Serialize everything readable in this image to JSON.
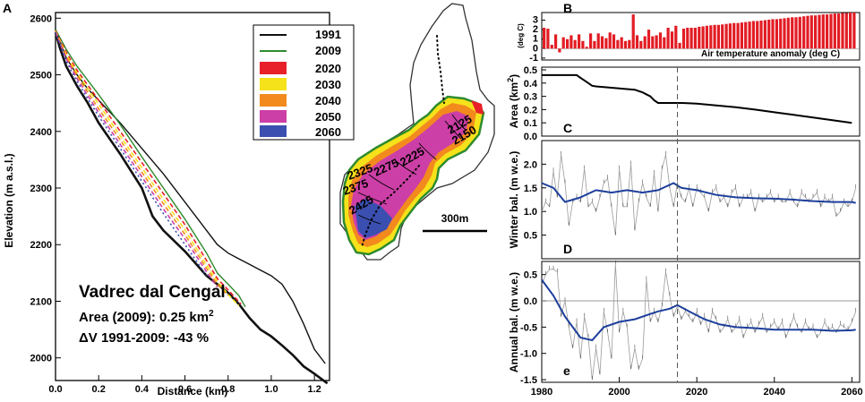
{
  "colors": {
    "c1991": "#111111",
    "c2009": "#2e8b2e",
    "c2020": "#e8202a",
    "c2030": "#f5e21a",
    "c2040": "#f28a1e",
    "c2050": "#cc3fa6",
    "c2060": "#3b4fb0",
    "model": "#1d3f9c",
    "markers": "#707070",
    "bars": "#e21c24"
  },
  "chart_data": [
    {
      "id": "A",
      "type": "line",
      "panel_label": "A",
      "xlabel": "Distance (km)",
      "ylabel": "Elevation (m a.s.l.)",
      "xlim": [
        0,
        1.27
      ],
      "ylim": [
        1960,
        2610
      ],
      "xticks": [
        "0.0",
        "0.2",
        "0.4",
        "0.6",
        "0.8",
        "1.0",
        "1.2"
      ],
      "yticks": [
        "2000",
        "2100",
        "2200",
        "2300",
        "2400",
        "2500",
        "2600"
      ],
      "title": "Vadrec dal Cengal",
      "annotation_area": "Area (2009): 0.25 km",
      "annotation_area_sup": "2",
      "annotation_dv": "ΔV 1991-2009: -43 %",
      "legend": [
        {
          "label": "1991",
          "kind": "line"
        },
        {
          "label": "2009",
          "kind": "line"
        },
        {
          "label": "2020",
          "kind": "box"
        },
        {
          "label": "2030",
          "kind": "box"
        },
        {
          "label": "2040",
          "kind": "box"
        },
        {
          "label": "2050",
          "kind": "box"
        },
        {
          "label": "2060",
          "kind": "box"
        }
      ],
      "series": [
        {
          "name": "1991 surface",
          "x": [
            0.0,
            0.02,
            0.05,
            0.1,
            0.15,
            0.2,
            0.3,
            0.4,
            0.5,
            0.6,
            0.7,
            0.75,
            0.8,
            0.85,
            0.9,
            0.95,
            1.0,
            1.05,
            1.1,
            1.15,
            1.2,
            1.25
          ],
          "y": [
            2580,
            2560,
            2530,
            2500,
            2475,
            2455,
            2415,
            2370,
            2325,
            2275,
            2225,
            2200,
            2185,
            2175,
            2165,
            2155,
            2145,
            2130,
            2100,
            2060,
            2015,
            1990
          ]
        },
        {
          "name": "bed",
          "x": [
            0.0,
            0.02,
            0.05,
            0.1,
            0.15,
            0.2,
            0.3,
            0.4,
            0.45,
            0.5,
            0.6,
            0.7,
            0.75,
            0.8,
            0.85,
            0.9,
            0.95,
            1.0,
            1.05,
            1.1,
            1.15,
            1.2,
            1.26
          ],
          "y": [
            2575,
            2548,
            2515,
            2480,
            2450,
            2415,
            2360,
            2300,
            2250,
            2225,
            2188,
            2145,
            2130,
            2115,
            2095,
            2070,
            2050,
            2038,
            2022,
            2005,
            1985,
            1972,
            1955
          ]
        },
        {
          "name": "2009 surface",
          "x": [
            0.0,
            0.05,
            0.1,
            0.2,
            0.3,
            0.4,
            0.5,
            0.6,
            0.7,
            0.75,
            0.8,
            0.85,
            0.88
          ],
          "y": [
            2580,
            2545,
            2515,
            2465,
            2412,
            2355,
            2300,
            2245,
            2185,
            2150,
            2130,
            2110,
            2090
          ]
        },
        {
          "name": "2020",
          "x": [
            0.0,
            0.05,
            0.1,
            0.2,
            0.3,
            0.4,
            0.5,
            0.6,
            0.7,
            0.75,
            0.8,
            0.86
          ],
          "y": [
            2578,
            2540,
            2508,
            2455,
            2400,
            2345,
            2290,
            2235,
            2172,
            2140,
            2120,
            2095
          ]
        },
        {
          "name": "2030",
          "x": [
            0.0,
            0.05,
            0.1,
            0.2,
            0.3,
            0.4,
            0.5,
            0.6,
            0.7,
            0.75,
            0.8,
            0.85
          ],
          "y": [
            2577,
            2536,
            2503,
            2448,
            2392,
            2336,
            2280,
            2226,
            2164,
            2135,
            2112,
            2092
          ]
        },
        {
          "name": "2040",
          "x": [
            0.0,
            0.05,
            0.1,
            0.2,
            0.3,
            0.4,
            0.5,
            0.6,
            0.7,
            0.75,
            0.8
          ],
          "y": [
            2576,
            2532,
            2498,
            2440,
            2385,
            2328,
            2272,
            2218,
            2158,
            2130,
            2110
          ]
        },
        {
          "name": "2050",
          "x": [
            0.0,
            0.05,
            0.1,
            0.2,
            0.3,
            0.4,
            0.5,
            0.6,
            0.7,
            0.75
          ],
          "y": [
            2575,
            2528,
            2493,
            2433,
            2377,
            2320,
            2263,
            2210,
            2152,
            2125
          ]
        },
        {
          "name": "2060",
          "x": [
            0.0,
            0.05,
            0.1,
            0.2,
            0.3,
            0.4,
            0.5,
            0.6,
            0.7
          ],
          "y": [
            2575,
            2524,
            2488,
            2427,
            2370,
            2312,
            2255,
            2200,
            2145
          ]
        }
      ]
    },
    {
      "id": "map",
      "type": "map",
      "contours": [
        "2125",
        "2150",
        "2225",
        "2275",
        "2325",
        "2375",
        "2425"
      ],
      "scale_label": "300m"
    },
    {
      "id": "B",
      "type": "bar",
      "panel_label": "B",
      "xlim": [
        1980,
        2062
      ],
      "ylim": [
        -1.2,
        3.8
      ],
      "yticks": [
        "3",
        "2",
        "1",
        "0",
        "-1"
      ],
      "ylabel": "(deg C)",
      "inner_label": "Air temperature anomaly (deg C)",
      "years": [
        1980,
        1981,
        1982,
        1983,
        1984,
        1985,
        1986,
        1987,
        1988,
        1989,
        1990,
        1991,
        1992,
        1993,
        1994,
        1995,
        1996,
        1997,
        1998,
        1999,
        2000,
        2001,
        2002,
        2003,
        2004,
        2005,
        2006,
        2007,
        2008,
        2009,
        2010,
        2011,
        2012,
        2013,
        2014,
        2015,
        2016,
        2017,
        2018,
        2019,
        2020,
        2021,
        2022,
        2023,
        2024,
        2025,
        2026,
        2027,
        2028,
        2029,
        2030,
        2031,
        2032,
        2033,
        2034,
        2035,
        2036,
        2037,
        2038,
        2039,
        2040,
        2041,
        2042,
        2043,
        2044,
        2045,
        2046,
        2047,
        2048,
        2049,
        2050,
        2051,
        2052,
        2053,
        2054,
        2055,
        2056,
        2057,
        2058,
        2059,
        2060
      ],
      "values": [
        2.2,
        2.1,
        0.4,
        1.5,
        -0.4,
        1.2,
        1.0,
        1.4,
        0.9,
        1.5,
        0.8,
        0.2,
        1.6,
        0.8,
        1.6,
        1.3,
        1.1,
        1.7,
        1.5,
        0.9,
        1.2,
        0.8,
        0.9,
        3.6,
        1.4,
        0.8,
        1.3,
        2.0,
        1.3,
        1.4,
        1.7,
        1.2,
        2.2,
        1.8,
        2.4,
        0.6,
        2.1,
        2.2,
        2.2,
        2.2,
        2.3,
        2.35,
        2.4,
        2.45,
        2.5,
        2.5,
        2.55,
        2.6,
        2.65,
        2.7,
        2.7,
        2.75,
        2.8,
        2.85,
        2.9,
        2.9,
        2.95,
        3.0,
        3.05,
        3.1,
        3.1,
        3.15,
        3.2,
        3.25,
        3.3,
        3.3,
        3.35,
        3.4,
        3.45,
        3.5,
        3.5,
        3.55,
        3.6,
        3.6,
        3.65,
        3.7,
        3.7,
        3.75,
        3.75,
        3.8,
        3.8
      ]
    },
    {
      "id": "C",
      "type": "line",
      "panel_label": "C",
      "ylabel": "Area (km",
      "ylabel_sup": "2",
      "ylabel_end": ")",
      "xlim": [
        1980,
        2062
      ],
      "ylim": [
        0,
        0.5
      ],
      "yticks": [
        "0.5",
        "0.4",
        "0.3",
        "0.2",
        "0.1",
        "0.0"
      ],
      "x": [
        1980,
        1989,
        1990,
        1991,
        1992,
        1993,
        1994,
        1996,
        1998,
        2000,
        2002,
        2004,
        2006,
        2008,
        2009,
        2010,
        2012,
        2014,
        2016,
        2020,
        2025,
        2030,
        2035,
        2040,
        2045,
        2050,
        2055,
        2060
      ],
      "y": [
        0.46,
        0.46,
        0.44,
        0.42,
        0.4,
        0.38,
        0.375,
        0.37,
        0.365,
        0.36,
        0.355,
        0.35,
        0.33,
        0.3,
        0.27,
        0.25,
        0.25,
        0.25,
        0.25,
        0.245,
        0.232,
        0.218,
        0.2,
        0.18,
        0.16,
        0.14,
        0.12,
        0.1
      ]
    },
    {
      "id": "D",
      "type": "line",
      "panel_label": "D",
      "ylabel": "Winter bal. (m w.e.)",
      "xlim": [
        1980,
        2062
      ],
      "ylim": [
        0,
        2.5
      ],
      "yticks": [
        "2.0",
        "1.5",
        "1.0",
        "0.5"
      ],
      "x": [
        1980,
        1981,
        1982,
        1983,
        1984,
        1985,
        1986,
        1987,
        1988,
        1989,
        1990,
        1991,
        1992,
        1993,
        1994,
        1995,
        1996,
        1997,
        1998,
        1999,
        2000,
        2001,
        2002,
        2003,
        2004,
        2005,
        2006,
        2007,
        2008,
        2009,
        2010,
        2011,
        2012,
        2013,
        2014,
        2015,
        2016,
        2017,
        2018,
        2019,
        2020,
        2021,
        2022,
        2023,
        2024,
        2025,
        2026,
        2027,
        2028,
        2029,
        2030,
        2031,
        2032,
        2033,
        2034,
        2035,
        2036,
        2037,
        2038,
        2039,
        2040,
        2041,
        2042,
        2043,
        2044,
        2045,
        2046,
        2047,
        2048,
        2049,
        2050,
        2051,
        2052,
        2053,
        2054,
        2055,
        2056,
        2057,
        2058,
        2059,
        2060,
        2061
      ],
      "y": [
        1.0,
        1.2,
        1.1,
        1.85,
        1.3,
        2.2,
        1.6,
        0.7,
        1.2,
        1.3,
        1.2,
        1.9,
        1.1,
        1.2,
        1.0,
        1.3,
        1.6,
        1.7,
        1.1,
        0.5,
        1.9,
        1.1,
        1.1,
        2.0,
        0.6,
        1.2,
        1.6,
        1.3,
        1.1,
        1.8,
        1.0,
        1.9,
        2.2,
        1.5,
        1.1,
        1.6,
        1.3,
        1.2,
        1.5,
        1.1,
        1.5,
        1.4,
        1.3,
        1.0,
        1.4,
        1.5,
        1.2,
        1.3,
        1.1,
        1.4,
        1.5,
        1.1,
        1.3,
        1.3,
        1.4,
        1.0,
        1.3,
        1.2,
        1.3,
        1.4,
        1.2,
        1.3,
        1.2,
        1.2,
        1.4,
        1.2,
        1.1,
        1.4,
        1.3,
        1.2,
        1.3,
        1.4,
        1.1,
        1.3,
        1.2,
        1.3,
        0.9,
        1.0,
        1.2,
        1.1,
        1.2,
        1.5
      ],
      "model_x": [
        1980,
        1983,
        1986,
        1990,
        1994,
        1998,
        2002,
        2006,
        2010,
        2014,
        2016,
        2020,
        2025,
        2030,
        2035,
        2040,
        2045,
        2050,
        2055,
        2060,
        2061
      ],
      "model_y": [
        1.6,
        1.5,
        1.2,
        1.3,
        1.45,
        1.4,
        1.45,
        1.4,
        1.45,
        1.6,
        1.5,
        1.45,
        1.35,
        1.3,
        1.28,
        1.27,
        1.25,
        1.22,
        1.2,
        1.2,
        1.18
      ]
    },
    {
      "id": "e",
      "type": "line",
      "panel_label": "e",
      "ylabel": "Annual bal. (m w.e.)",
      "xlabel": "",
      "xlim": [
        1980,
        2062
      ],
      "ylim": [
        -1.55,
        0.75
      ],
      "yticks": [
        "0.5",
        "0.0",
        "-0.5",
        "-1.0",
        "-1.5"
      ],
      "xticks": [
        "1980",
        "2000",
        "2020",
        "2040",
        "2060"
      ],
      "x": [
        1980,
        1981,
        1982,
        1983,
        1984,
        1985,
        1986,
        1987,
        1988,
        1989,
        1990,
        1991,
        1992,
        1993,
        1994,
        1995,
        1996,
        1997,
        1998,
        1999,
        2000,
        2001,
        2002,
        2003,
        2004,
        2005,
        2006,
        2007,
        2008,
        2009,
        2010,
        2011,
        2012,
        2013,
        2014,
        2015,
        2016,
        2017,
        2018,
        2019,
        2020,
        2021,
        2022,
        2023,
        2024,
        2025,
        2026,
        2027,
        2028,
        2029,
        2030,
        2031,
        2032,
        2033,
        2034,
        2035,
        2036,
        2037,
        2038,
        2039,
        2040,
        2041,
        2042,
        2043,
        2044,
        2045,
        2046,
        2047,
        2048,
        2049,
        2050,
        2051,
        2052,
        2053,
        2054,
        2055,
        2056,
        2057,
        2058,
        2059,
        2060,
        2061
      ],
      "y": [
        0.3,
        0.5,
        0.6,
        0.6,
        0.55,
        -0.3,
        0.0,
        -0.5,
        -0.9,
        -0.4,
        -1.1,
        -0.3,
        -0.7,
        -1.5,
        -0.9,
        -1.4,
        -0.2,
        -0.6,
        -1.1,
        0.7,
        -0.6,
        -0.2,
        -0.5,
        -1.3,
        -0.9,
        -1.3,
        -1.1,
        0.4,
        -0.4,
        -0.2,
        -0.4,
        -0.1,
        0.55,
        0.1,
        -0.3,
        -0.1,
        -0.35,
        -0.2,
        -0.3,
        -0.4,
        -0.2,
        -0.45,
        -0.3,
        -0.6,
        -0.2,
        -0.35,
        -0.6,
        -0.5,
        -0.35,
        -0.6,
        -0.5,
        -0.35,
        -0.7,
        -0.5,
        -0.4,
        -0.6,
        -0.45,
        -0.3,
        -0.6,
        -0.5,
        -0.4,
        -0.55,
        -0.4,
        -0.7,
        -0.5,
        -0.3,
        -0.5,
        -0.6,
        -0.4,
        -0.55,
        -0.5,
        -0.7,
        -0.6,
        -0.4,
        -0.55,
        -0.5,
        -0.6,
        -0.45,
        -0.5,
        -0.55,
        -0.4,
        -0.2
      ],
      "model_x": [
        1980,
        1983,
        1986,
        1990,
        1993,
        1996,
        2000,
        2004,
        2008,
        2010,
        2013,
        2015,
        2018,
        2022,
        2026,
        2030,
        2035,
        2040,
        2045,
        2050,
        2055,
        2060,
        2061
      ],
      "model_y": [
        0.4,
        0.1,
        -0.3,
        -0.7,
        -0.75,
        -0.5,
        -0.4,
        -0.35,
        -0.25,
        -0.2,
        -0.15,
        -0.08,
        -0.2,
        -0.35,
        -0.45,
        -0.5,
        -0.52,
        -0.55,
        -0.55,
        -0.55,
        -0.57,
        -0.56,
        -0.55
      ]
    }
  ]
}
